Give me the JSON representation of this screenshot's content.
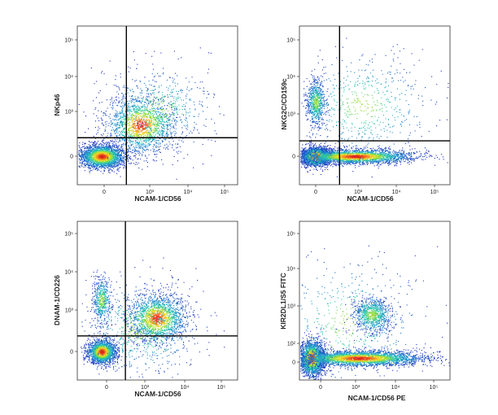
{
  "colors": {
    "density_low": "#1f2fbf",
    "density_mid": "#22b6c8",
    "density_high": "#e02a1e",
    "gate_line": "#000000"
  },
  "chart_data": [
    {
      "type": "scatter",
      "xlabel": "NCAM-1/CD56",
      "ylabel": "NKp46",
      "x_ticks": [
        "0",
        "10³",
        "10⁴",
        "10⁵"
      ],
      "y_ticks": [
        "0",
        "10³",
        "10⁴",
        "10⁵"
      ],
      "x_scale": "log",
      "y_scale": "log",
      "quadrant_gate": {
        "x": 400,
        "y": 300
      },
      "populations": [
        {
          "x": 0,
          "y": 0,
          "count": 2600,
          "spread": [
            0.09,
            0.05
          ]
        },
        {
          "x": 900,
          "y": 650,
          "count": 1700,
          "spread": [
            0.14,
            0.12
          ]
        },
        {
          "x": 2200,
          "y": 1600,
          "count": 600,
          "spread": [
            0.22,
            0.18
          ]
        }
      ]
    },
    {
      "type": "scatter",
      "xlabel": "NCAM-1/CD56",
      "ylabel": "NKG2C/CD159c",
      "x_ticks": [
        "0",
        "10³",
        "10⁴",
        "10⁵"
      ],
      "y_ticks": [
        "0",
        "10³",
        "10⁴",
        "10⁵"
      ],
      "x_scale": "log",
      "y_scale": "log",
      "quadrant_gate": {
        "x": 400,
        "y": 250
      },
      "populations": [
        {
          "x": 0,
          "y": 0,
          "count": 2200,
          "spread": [
            0.06,
            0.04
          ]
        },
        {
          "x": 1000,
          "y": 0,
          "count": 2800,
          "spread": [
            0.24,
            0.03
          ]
        },
        {
          "x": 0,
          "y": 2500,
          "count": 700,
          "spread": [
            0.04,
            0.1
          ]
        },
        {
          "x": 1500,
          "y": 2000,
          "count": 600,
          "spread": [
            0.28,
            0.22
          ]
        }
      ]
    },
    {
      "type": "scatter",
      "xlabel": "NCAM-1/CD56",
      "ylabel": "DNAM-1/CD226",
      "x_ticks": [
        "0",
        "10³",
        "10⁴",
        "10⁵"
      ],
      "y_ticks": [
        "0",
        "10³",
        "10⁴",
        "10⁵"
      ],
      "x_scale": "log",
      "y_scale": "log",
      "quadrant_gate": {
        "x": 400,
        "y": 250
      },
      "populations": [
        {
          "x": 0,
          "y": 0,
          "count": 2000,
          "spread": [
            0.06,
            0.05
          ]
        },
        {
          "x": 2500,
          "y": 700,
          "count": 1800,
          "spread": [
            0.12,
            0.1
          ]
        },
        {
          "x": 0,
          "y": 2000,
          "count": 500,
          "spread": [
            0.04,
            0.1
          ]
        },
        {
          "x": 1000,
          "y": 400,
          "count": 700,
          "spread": [
            0.25,
            0.2
          ]
        }
      ]
    },
    {
      "type": "scatter",
      "xlabel": "NCAM-1/CD56 PE",
      "ylabel": "KIR2DL1/S5 FITC",
      "x_ticks": [
        "0",
        "10³",
        "10⁴",
        "10⁵"
      ],
      "y_ticks": [
        "0",
        "10²",
        "10³",
        "10⁴",
        "10⁵"
      ],
      "x_scale": "log",
      "y_scale": "log",
      "populations": [
        {
          "x": 0,
          "y": 100,
          "count": 2400,
          "spread": [
            0.05,
            0.07
          ]
        },
        {
          "x": 1500,
          "y": 100,
          "count": 3200,
          "spread": [
            0.26,
            0.03
          ]
        },
        {
          "x": 3000,
          "y": 2500,
          "count": 900,
          "spread": [
            0.08,
            0.07
          ]
        },
        {
          "x": 800,
          "y": 1500,
          "count": 500,
          "spread": [
            0.3,
            0.25
          ]
        }
      ]
    }
  ]
}
